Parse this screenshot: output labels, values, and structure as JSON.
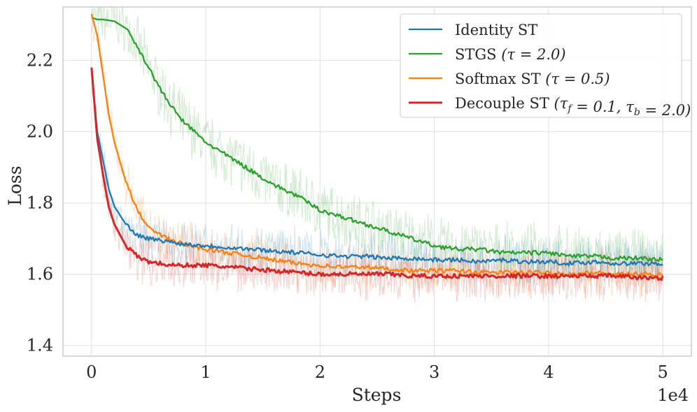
{
  "chart_data": {
    "type": "line",
    "title": "",
    "xlabel": "Steps",
    "ylabel": "Loss",
    "x_offset_label": "1e4",
    "xlim": [
      -0.25,
      5.25
    ],
    "ylim": [
      1.37,
      2.35
    ],
    "xticks": [
      0,
      1,
      2,
      3,
      4,
      5
    ],
    "xtick_labels": [
      "0",
      "1",
      "2",
      "3",
      "4",
      "5"
    ],
    "yticks": [
      1.4,
      1.6,
      1.8,
      2.0,
      2.2
    ],
    "ytick_labels": [
      "1.4",
      "1.6",
      "1.8",
      "2.0",
      "2.2"
    ],
    "grid": true,
    "legend_position": "top-right",
    "series": [
      {
        "name": "Identity ST",
        "color": "#1f77b4",
        "x": [
          0,
          0.05,
          0.1,
          0.15,
          0.2,
          0.3,
          0.4,
          0.5,
          0.6,
          0.7,
          0.8,
          1.0,
          1.2,
          1.4,
          1.6,
          1.8,
          2.0,
          2.2,
          2.4,
          2.6,
          2.8,
          3.0,
          3.2,
          3.4,
          3.6,
          3.8,
          4.0,
          4.2,
          4.4,
          4.6,
          4.8,
          5.0
        ],
        "values": [
          2.18,
          2.0,
          1.92,
          1.84,
          1.79,
          1.74,
          1.71,
          1.7,
          1.695,
          1.69,
          1.685,
          1.68,
          1.675,
          1.67,
          1.665,
          1.66,
          1.655,
          1.65,
          1.65,
          1.645,
          1.645,
          1.64,
          1.64,
          1.635,
          1.64,
          1.635,
          1.635,
          1.63,
          1.635,
          1.63,
          1.63,
          1.63
        ]
      },
      {
        "name": "STGS (τ = 2.0)",
        "color": "#2ca02c",
        "x": [
          0,
          0.05,
          0.1,
          0.2,
          0.3,
          0.4,
          0.5,
          0.6,
          0.7,
          0.8,
          0.9,
          1.0,
          1.2,
          1.4,
          1.6,
          1.8,
          2.0,
          2.2,
          2.4,
          2.6,
          2.8,
          3.0,
          3.2,
          3.4,
          3.6,
          3.8,
          4.0,
          4.2,
          4.4,
          4.6,
          4.8,
          5.0
        ],
        "values": [
          2.32,
          2.315,
          2.315,
          2.31,
          2.29,
          2.24,
          2.18,
          2.12,
          2.07,
          2.03,
          2.0,
          1.97,
          1.93,
          1.89,
          1.85,
          1.82,
          1.78,
          1.76,
          1.74,
          1.72,
          1.7,
          1.68,
          1.67,
          1.67,
          1.66,
          1.66,
          1.66,
          1.65,
          1.65,
          1.645,
          1.645,
          1.64
        ]
      },
      {
        "name": "Softmax ST (τ = 0.5)",
        "color": "#ff7f0e",
        "x": [
          0,
          0.05,
          0.1,
          0.15,
          0.2,
          0.3,
          0.4,
          0.5,
          0.6,
          0.7,
          0.8,
          1.0,
          1.2,
          1.4,
          1.6,
          1.8,
          2.0,
          2.2,
          2.4,
          2.6,
          2.8,
          3.0,
          3.2,
          3.4,
          3.6,
          3.8,
          4.0,
          4.2,
          4.4,
          4.6,
          4.8,
          5.0
        ],
        "values": [
          2.33,
          2.27,
          2.16,
          2.05,
          1.97,
          1.86,
          1.78,
          1.73,
          1.71,
          1.695,
          1.685,
          1.67,
          1.66,
          1.65,
          1.64,
          1.63,
          1.625,
          1.62,
          1.62,
          1.615,
          1.61,
          1.61,
          1.61,
          1.605,
          1.605,
          1.605,
          1.605,
          1.6,
          1.605,
          1.6,
          1.6,
          1.6
        ]
      },
      {
        "name": "Decouple ST (τf = 0.1, τb = 2.0)",
        "color": "#d62728",
        "x": [
          0,
          0.05,
          0.1,
          0.15,
          0.2,
          0.3,
          0.4,
          0.5,
          0.6,
          0.7,
          0.8,
          1.0,
          1.2,
          1.4,
          1.6,
          1.8,
          2.0,
          2.2,
          2.4,
          2.6,
          2.8,
          3.0,
          3.2,
          3.4,
          3.6,
          3.8,
          4.0,
          4.2,
          4.4,
          4.6,
          4.8,
          5.0
        ],
        "values": [
          2.18,
          1.98,
          1.88,
          1.79,
          1.74,
          1.68,
          1.65,
          1.635,
          1.63,
          1.625,
          1.625,
          1.625,
          1.62,
          1.615,
          1.61,
          1.605,
          1.6,
          1.6,
          1.6,
          1.6,
          1.595,
          1.595,
          1.595,
          1.595,
          1.595,
          1.595,
          1.595,
          1.595,
          1.595,
          1.595,
          1.59,
          1.59
        ]
      }
    ],
    "legend": {
      "entries": [
        {
          "prefix": "Identity ST",
          "math": "",
          "color": "#1f77b4"
        },
        {
          "prefix": "STGS ",
          "math": "(τ = 2.0)",
          "color": "#2ca02c"
        },
        {
          "prefix": "Softmax ST ",
          "math": "(τ = 0.5)",
          "color": "#ff7f0e"
        },
        {
          "prefix": "Decouple ST ",
          "math": "(τ_f = 0.1, τ_b = 2.0)",
          "color": "#d62728"
        }
      ]
    }
  }
}
